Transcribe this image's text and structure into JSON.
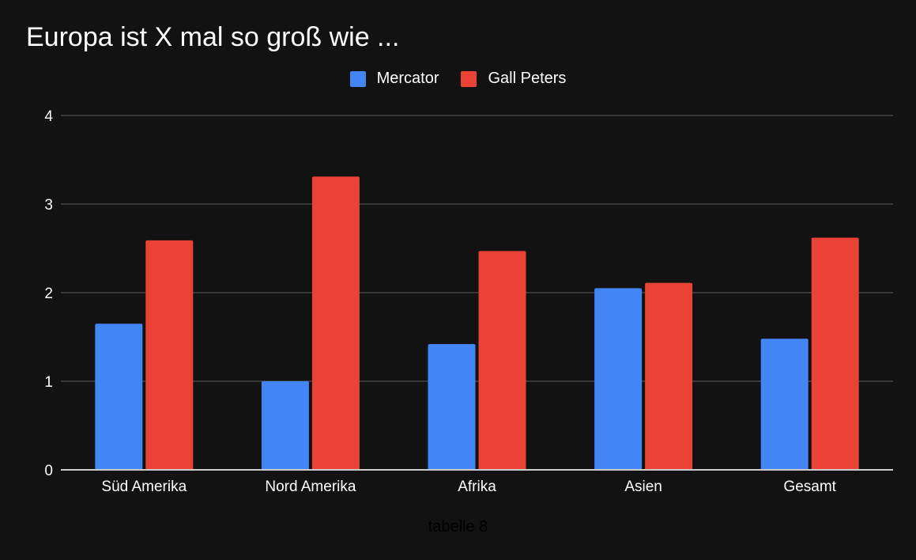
{
  "chart_data": {
    "type": "bar",
    "title": "Europa ist X mal so groß wie ...",
    "xlabel": "tabelle 8",
    "ylabel": "",
    "categories": [
      "Süd Amerika",
      "Nord Amerika",
      "Afrika",
      "Asien",
      "Gesamt"
    ],
    "series": [
      {
        "name": "Mercator",
        "color": "#4285f4",
        "values": [
          1.65,
          1.0,
          1.42,
          2.05,
          1.48
        ]
      },
      {
        "name": "Gall Peters",
        "color": "#ea4335",
        "values": [
          2.59,
          3.31,
          2.47,
          2.11,
          2.62
        ]
      }
    ],
    "ylim": [
      0,
      4
    ],
    "yticks": [
      0,
      1,
      2,
      3,
      4
    ],
    "legend_position": "top-center",
    "grid": true
  },
  "colors": {
    "background": "#121212",
    "gridline": "#444444",
    "baseline": "#cccccc",
    "text": "#ffffff"
  }
}
